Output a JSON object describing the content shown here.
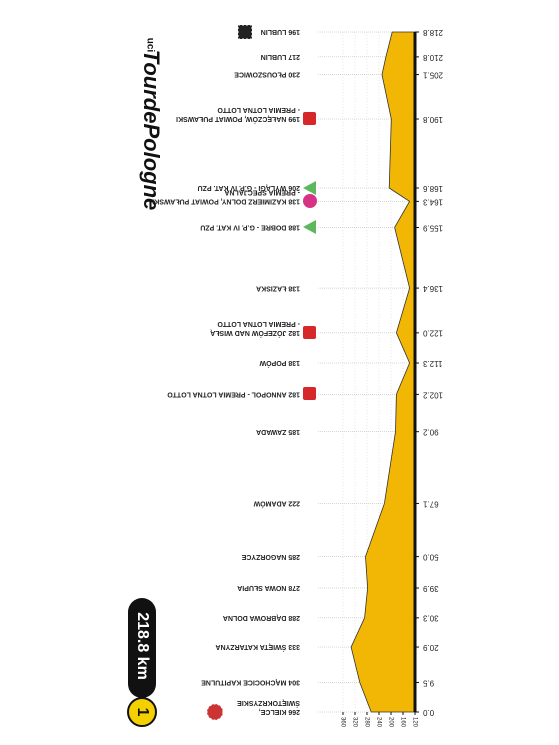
{
  "brand": "TourdePologne",
  "sponsor": "uci",
  "stage": "1",
  "distance": "218.8 km",
  "chart_data": {
    "type": "area",
    "color": "#f2b705",
    "grid": true,
    "x": [
      0,
      9.5,
      20.9,
      30.3,
      39.9,
      50,
      67.1,
      90.2,
      102.2,
      112.3,
      122,
      136.4,
      155.9,
      164.3,
      168.6,
      190.8,
      205.1,
      210.8,
      218.8
    ],
    "values": [
      266,
      304,
      333,
      288,
      278,
      285,
      222,
      185,
      182,
      138,
      182,
      138,
      188,
      138,
      206,
      199,
      230,
      217,
      196
    ],
    "place_labels": [
      [
        "266 KIELCE,",
        "ŚWIĘTOKRZYSKIE"
      ],
      [
        "304 MĄCHOCICE KAPITULNE"
      ],
      [
        "333 ŚWIĘTA KATARZYNA"
      ],
      [
        "288 DĄBROWA DOLNA"
      ],
      [
        "278 NOWA SŁUPIA"
      ],
      [
        "285 NAGORZYCE"
      ],
      [
        "222 ADAMÓW"
      ],
      [
        "185 ZAWADA"
      ],
      [
        "182 ANNOPOL - PREMIA LOTNA LOTTO"
      ],
      [
        "138 POPÓW"
      ],
      [
        "182 JÓZEFÓW NAD WISŁĄ",
        "- PREMIA LOTNA LOTTO"
      ],
      [
        "138 ŁAZISKA"
      ],
      [
        "188 DOBRE - G.P. IV KAT. PZU"
      ],
      [
        "138 KAZIMIERZ DOLNY, POWIAT PUŁAWSKI",
        "- PREMIA SPECJALNA"
      ],
      [
        "206 WYLĄGI - G.P. IV KAT. PZU"
      ],
      [
        "199 NAŁĘCZÓW, POWIAT PUŁAWSKI",
        "- PREMIA LOTNA LOTTO"
      ],
      [
        "230 PŁOUSZOWICE"
      ],
      [
        "217 LUBLIN"
      ],
      [
        "196 LUBLIN"
      ]
    ],
    "xlim": [
      0,
      218.8
    ],
    "xticks": [
      {
        "value": 0,
        "label": "0.0"
      },
      9.5,
      20.9,
      30.3,
      39.9,
      {
        "value": 50,
        "label": "50.0"
      },
      67.1,
      90.2,
      102.2,
      112.3,
      {
        "value": 122,
        "label": "122.0"
      },
      136.4,
      155.9,
      164.3,
      168.6,
      190.8,
      205.1,
      210.8,
      218.8
    ],
    "ylim": [
      120,
      360
    ],
    "yticks": [
      120,
      160,
      200,
      240,
      280,
      320,
      360
    ]
  }
}
